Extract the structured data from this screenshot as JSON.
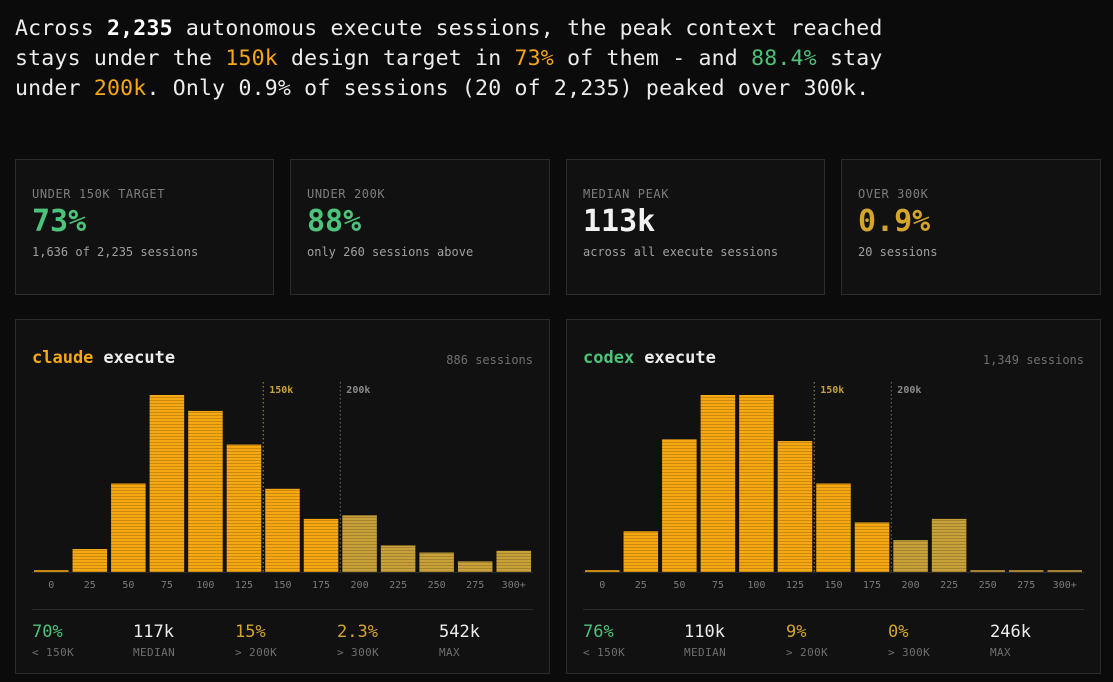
{
  "headline": {
    "p1": "Across ",
    "total": "2,235",
    "p2": " autonomous execute sessions, the peak context reached stays under the ",
    "target": "150k",
    "p3": " design target in ",
    "pct_under_target": "73%",
    "p4": " of them - and ",
    "pct_under_200": "88.4%",
    "p5": " stay under ",
    "limit": "200k",
    "p6": ". Only 0.9% of sessions (20 of 2,235) peaked over 300k."
  },
  "stat_cards": [
    {
      "label": "UNDER 150K TARGET",
      "value": "73%",
      "sub": "1,636 of 2,235 sessions",
      "color": "#4cc37a"
    },
    {
      "label": "UNDER 200K",
      "value": "88%",
      "sub": "only 260 sessions above",
      "color": "#4cc37a"
    },
    {
      "label": "MEDIAN PEAK",
      "value": "113k",
      "sub": "across all execute sessions",
      "color": "#f2f2f2"
    },
    {
      "label": "OVER 300K",
      "value": "0.9%",
      "sub": "20 sessions",
      "color": "#d4a52c"
    }
  ],
  "colors": {
    "bar_under": "#f5a812",
    "bar_over": "#c9a13a",
    "marker_150": "#b8922e",
    "marker_200": "#6e6e6e",
    "agent_claude": "#f5a812",
    "agent_codex": "#4cc37a",
    "green": "#4cc37a",
    "amber": "#d4a52c",
    "white": "#ececec"
  },
  "chart_data": [
    {
      "type": "bar",
      "agent": "claude",
      "mode": "execute",
      "sessions_label": "886 sessions",
      "categories": [
        "0",
        "25",
        "50",
        "75",
        "100",
        "125",
        "150",
        "175",
        "200",
        "225",
        "250",
        "275",
        "300+"
      ],
      "values": [
        1,
        13,
        50,
        100,
        91,
        72,
        47,
        30,
        32,
        15,
        11,
        6,
        12
      ],
      "ylim": [
        0,
        100
      ],
      "markers": [
        {
          "at": 150,
          "label": "150k"
        },
        {
          "at": 200,
          "label": "200k"
        }
      ],
      "stats": [
        {
          "value": "70%",
          "label": "< 150K",
          "color": "green"
        },
        {
          "value": "117k",
          "label": "MEDIAN",
          "color": "white"
        },
        {
          "value": "15%",
          "label": "> 200K",
          "color": "amber"
        },
        {
          "value": "2.3%",
          "label": "> 300K",
          "color": "amber"
        },
        {
          "value": "542k",
          "label": "MAX",
          "color": "white"
        }
      ]
    },
    {
      "type": "bar",
      "agent": "codex",
      "mode": "execute",
      "sessions_label": "1,349 sessions",
      "categories": [
        "0",
        "25",
        "50",
        "75",
        "100",
        "125",
        "150",
        "175",
        "200",
        "225",
        "250",
        "275",
        "300+"
      ],
      "values": [
        1,
        23,
        75,
        100,
        100,
        74,
        50,
        28,
        18,
        30,
        1,
        1,
        1
      ],
      "ylim": [
        0,
        100
      ],
      "markers": [
        {
          "at": 150,
          "label": "150k"
        },
        {
          "at": 200,
          "label": "200k"
        }
      ],
      "stats": [
        {
          "value": "76%",
          "label": "< 150K",
          "color": "green"
        },
        {
          "value": "110k",
          "label": "MEDIAN",
          "color": "white"
        },
        {
          "value": "9%",
          "label": "> 200K",
          "color": "amber"
        },
        {
          "value": "0%",
          "label": "> 300K",
          "color": "amber"
        },
        {
          "value": "246k",
          "label": "MAX",
          "color": "white"
        }
      ]
    }
  ]
}
